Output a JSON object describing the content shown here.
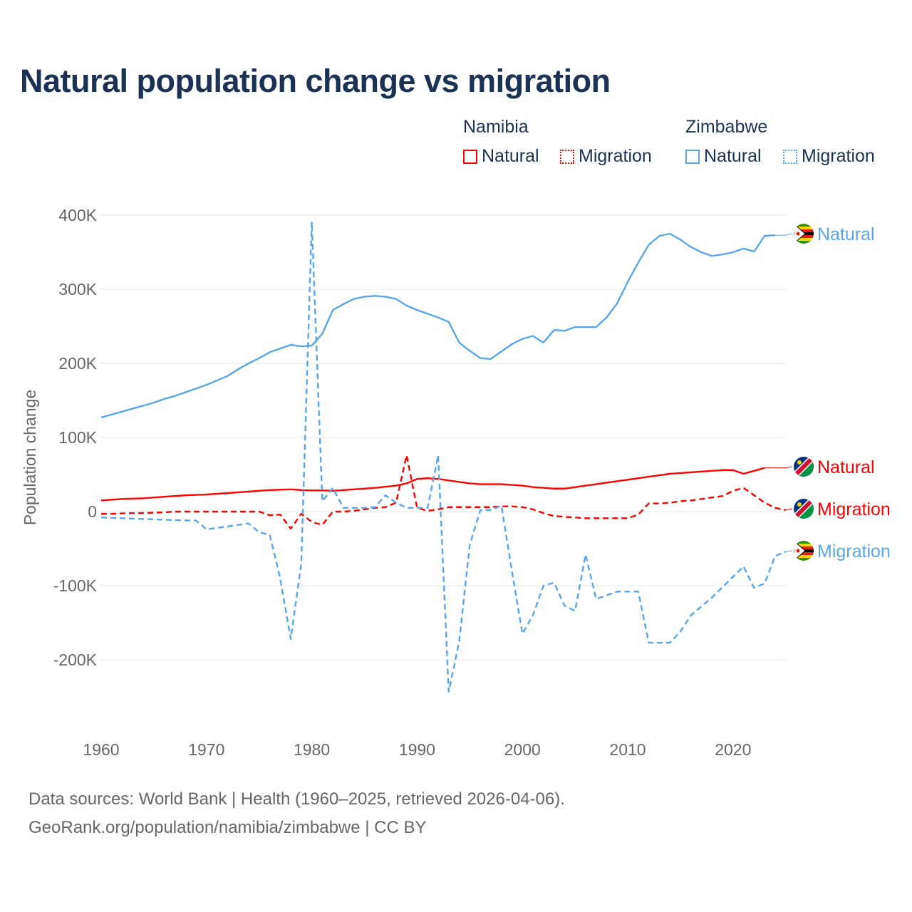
{
  "title": "Natural population change vs migration",
  "legend": {
    "groups": [
      {
        "name": "Namibia",
        "items": [
          {
            "label": "Natural",
            "style": "solid",
            "color": "#ff0000"
          },
          {
            "label": "Migration",
            "style": "dotted",
            "color": "#ff0000"
          }
        ]
      },
      {
        "name": "Zimbabwe",
        "items": [
          {
            "label": "Natural",
            "style": "solid",
            "color": "#5aa5ea"
          },
          {
            "label": "Migration",
            "style": "dotted",
            "color": "#5aa5ea"
          }
        ]
      }
    ]
  },
  "footer": {
    "line1": "Data sources: World Bank | Health (1960–2025, retrieved 2026-04-06).",
    "line2": "GeoRank.org/population/namibia/zimbabwe | CC BY"
  },
  "chart_data": {
    "type": "line",
    "title": "Natural population change vs migration",
    "xlabel": "",
    "ylabel": "Population change",
    "xlim": [
      1960,
      2025
    ],
    "ylim": [
      -250000,
      400000
    ],
    "xticks": [
      1960,
      1970,
      1980,
      1990,
      2000,
      2010,
      2020
    ],
    "xtick_labels": [
      "1960",
      "1970",
      "1980",
      "1990",
      "2000",
      "2010",
      "2020"
    ],
    "yticks": [
      400000,
      300000,
      200000,
      100000,
      0,
      -100000,
      -200000
    ],
    "ytick_labels": [
      "400K",
      "300K",
      "200K",
      "100K",
      "0",
      "-100K",
      "-200K"
    ],
    "grid": true,
    "legend_position": "top-right",
    "x_start": 1960,
    "series": [
      {
        "name": "Zimbabwe Natural",
        "country": "Zimbabwe",
        "end_label": "Natural",
        "color": "#5aa5ea",
        "dash": false,
        "values": [
          127,
          131,
          135,
          139,
          143,
          147,
          152,
          156,
          161,
          166,
          171,
          177,
          183,
          192,
          200,
          207,
          215,
          220,
          225,
          223,
          224,
          240,
          272,
          280,
          287,
          290,
          291,
          290,
          287,
          278,
          272,
          267,
          262,
          256,
          228,
          217,
          207,
          206,
          216,
          226,
          233,
          237,
          228,
          245,
          244,
          249,
          249,
          249,
          262,
          281,
          310,
          336,
          360,
          372,
          375,
          367,
          357,
          350,
          345,
          347,
          350,
          355,
          351,
          372,
          373
        ]
      },
      {
        "name": "Namibia Natural",
        "country": "Namibia",
        "end_label": "Natural",
        "color": "#ff0000",
        "dash": false,
        "values": [
          15,
          16,
          17,
          17.5,
          18,
          19,
          20,
          21,
          22,
          22.5,
          23,
          24,
          25,
          26,
          27,
          28,
          29,
          29.5,
          30,
          29,
          28.5,
          28.5,
          28,
          29,
          30,
          31,
          32,
          33.5,
          35,
          38,
          44,
          45,
          44,
          42,
          40,
          38,
          37,
          37,
          37,
          36,
          35,
          33,
          32,
          31,
          31,
          33,
          35,
          37,
          39,
          41,
          43,
          45,
          47,
          49,
          51,
          52,
          53,
          54,
          55,
          56,
          56,
          51,
          55,
          59
        ]
      },
      {
        "name": "Namibia Migration",
        "country": "Namibia",
        "end_label": "Migration",
        "color": "#ff0000",
        "dash": true,
        "values": [
          -3,
          -3,
          -2.5,
          -2,
          -2,
          -1.5,
          -1,
          0,
          0,
          0,
          0,
          0,
          0,
          0,
          0,
          0,
          -5,
          -4,
          -23,
          -3,
          -14,
          -18,
          0,
          0,
          1,
          3,
          5,
          6,
          12,
          76,
          5,
          1,
          3,
          6,
          6,
          6,
          6,
          6,
          7,
          7,
          6,
          3,
          -2,
          -6,
          -7,
          -8,
          -9,
          -9,
          -9,
          -9,
          -9,
          -4,
          11,
          11,
          12,
          14,
          15,
          17,
          19,
          21,
          28,
          32,
          22,
          12,
          5,
          2
        ]
      },
      {
        "name": "Zimbabwe Migration",
        "country": "Zimbabwe",
        "end_label": "Migration",
        "color": "#5aa5ea",
        "dash": true,
        "values": [
          -8,
          -8.5,
          -9,
          -9.5,
          -10,
          -10.5,
          -11,
          -11.5,
          -12,
          -12,
          -24,
          -22,
          -20,
          -18,
          -16,
          -28,
          -31,
          -90,
          -172,
          -70,
          391,
          14,
          32,
          5,
          5,
          5,
          6,
          22,
          12,
          5,
          5,
          5,
          76,
          -243,
          -175,
          -45,
          2,
          2,
          8,
          -80,
          -165,
          -140,
          -100,
          -96,
          -127,
          -134,
          -58,
          -118,
          -113,
          -108,
          -108,
          -108,
          -177,
          -177,
          -177,
          -162,
          -140,
          -128,
          -116,
          -102,
          -88,
          -74,
          -103,
          -97,
          -60,
          -54
        ]
      }
    ],
    "value_unit": "thousands"
  }
}
